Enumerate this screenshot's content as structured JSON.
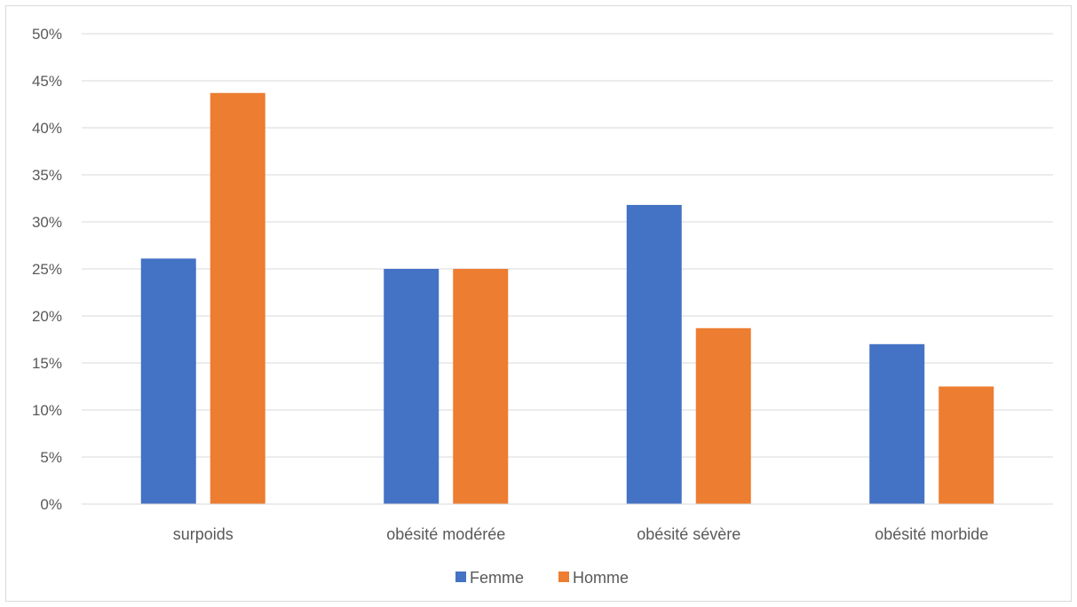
{
  "chart_data": {
    "type": "bar",
    "title": "",
    "xlabel": "",
    "ylabel": "",
    "categories": [
      "surpoids",
      "obésité modérée",
      "obésité sévère",
      "obésité morbide"
    ],
    "series": [
      {
        "name": "Femme",
        "color": "#4472C4",
        "values": [
          26.1,
          25.0,
          31.8,
          17.0
        ]
      },
      {
        "name": "Homme",
        "color": "#ED7D31",
        "values": [
          43.7,
          25.0,
          18.7,
          12.5
        ]
      }
    ],
    "ylim": [
      0,
      50
    ],
    "yticks": [
      "0%",
      "5%",
      "10%",
      "15%",
      "20%",
      "25%",
      "30%",
      "35%",
      "40%",
      "45%",
      "50%"
    ],
    "grid": true,
    "gridColor": "#d9d9d9",
    "legend_position": "bottom"
  }
}
